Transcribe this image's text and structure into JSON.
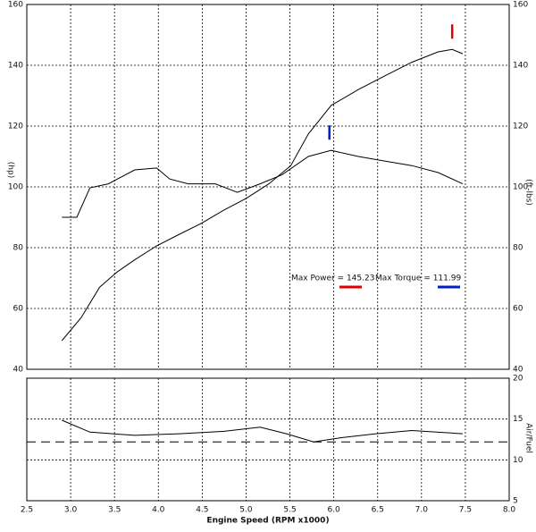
{
  "chart_data": [
    {
      "type": "line",
      "ylabel": "(hp)",
      "y2label": "(ft-lbs)",
      "xlim": [
        2.5,
        8.0
      ],
      "ylim": [
        40,
        160
      ],
      "yticks": [
        40,
        60,
        80,
        100,
        120,
        140,
        160
      ],
      "y2lim": [
        40,
        160
      ],
      "y2ticks": [
        40,
        60,
        80,
        100,
        120,
        140,
        160
      ],
      "grid": true,
      "series": [
        {
          "color": "#000000",
          "x": [
            2.9,
            3.12,
            3.33,
            3.53,
            3.73,
            3.98,
            4.24,
            4.49,
            4.75,
            5.0,
            5.26,
            5.51,
            5.71,
            5.97,
            6.28,
            6.58,
            6.89,
            7.19,
            7.35,
            7.47
          ],
          "values": [
            49.4,
            57,
            67,
            72,
            76,
            80.6,
            84.4,
            88,
            92.4,
            96.2,
            101,
            107,
            117.4,
            126.8,
            132,
            136.5,
            141,
            144.4,
            145.2,
            143.8
          ]
        },
        {
          "color": "#000000",
          "axis": "y2",
          "x": [
            2.9,
            3.07,
            3.22,
            3.43,
            3.73,
            3.98,
            4.13,
            4.34,
            4.65,
            4.9,
            5.16,
            5.41,
            5.71,
            5.97,
            6.28,
            6.58,
            6.89,
            7.19,
            7.47
          ],
          "values": [
            90,
            90,
            99.7,
            101,
            105.6,
            106.2,
            102.6,
            101,
            101,
            98.2,
            101,
            104,
            110,
            112,
            110,
            108.5,
            107,
            104.7,
            101
          ]
        }
      ],
      "peak_markers": [
        {
          "x": 7.35,
          "value": 145.23,
          "color": "#e00000"
        },
        {
          "x": 5.95,
          "value": 111.99,
          "color": "#0020c0",
          "axis": "y2"
        }
      ],
      "annotations": [
        {
          "text": "Max Power = 145.23",
          "color": "#e00000"
        },
        {
          "text": "Max Torque = 111.99",
          "color": "#0020c0"
        }
      ]
    },
    {
      "type": "line",
      "ylabel": "Air/Fuel",
      "xlabel": "Engine Speed (RPM x1000)",
      "xlim": [
        2.5,
        8.0
      ],
      "xticks": [
        {
          "value": 2.5,
          "label": "2.5"
        },
        {
          "value": 3,
          "label": "3.0"
        },
        {
          "value": 3.5,
          "label": "3.5"
        },
        {
          "value": 4,
          "label": "4.0"
        },
        {
          "value": 4.5,
          "label": "4.5"
        },
        {
          "value": 5,
          "label": "5.0"
        },
        {
          "value": 5.5,
          "label": "5.5"
        },
        {
          "value": 6,
          "label": "6.0"
        },
        {
          "value": 6.5,
          "label": "6.5"
        },
        {
          "value": 7,
          "label": "7.0"
        },
        {
          "value": 7.5,
          "label": "7.5"
        },
        {
          "value": 8,
          "label": "8.0"
        }
      ],
      "ylim": [
        5,
        20
      ],
      "yticks": [
        5,
        10,
        15,
        20
      ],
      "grid": true,
      "reference_line": 12.2,
      "series": [
        {
          "color": "#000000",
          "x": [
            2.9,
            3.22,
            3.73,
            4.24,
            4.75,
            5.16,
            5.46,
            5.77,
            6.07,
            6.48,
            6.89,
            7.47
          ],
          "values": [
            14.85,
            13.4,
            13.0,
            13.2,
            13.5,
            14.0,
            13.2,
            12.2,
            12.7,
            13.2,
            13.6,
            13.2
          ]
        }
      ]
    }
  ]
}
